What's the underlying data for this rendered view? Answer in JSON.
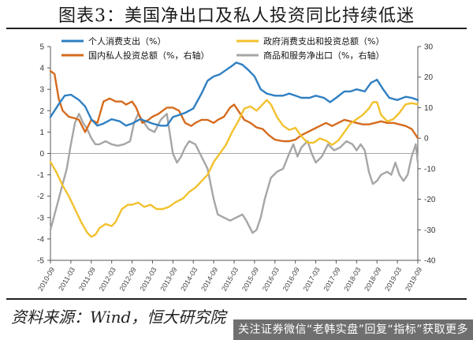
{
  "title": "图表3：美国净出口及私人投资同比持续低迷",
  "source": "资料来源：Wind，恒大研究院",
  "watermark": "关注证券微信“老韩实盘”回复“指标”获取更多",
  "chart_data": {
    "type": "line",
    "left_ylim": [
      -5,
      5
    ],
    "left_ticks": [
      -5,
      -4,
      -3,
      -2,
      -1,
      0,
      1,
      2,
      3,
      4,
      5
    ],
    "right_ylim": [
      -40,
      30
    ],
    "right_ticks": [
      -40,
      -30,
      -20,
      -10,
      0,
      10,
      20,
      30
    ],
    "xlim": [
      2010.75,
      2019.75
    ],
    "x_ticks": [
      {
        "label": "2010-09",
        "x": 2010.75
      },
      {
        "label": "2011-03",
        "x": 2011.25
      },
      {
        "label": "2011-09",
        "x": 2011.75
      },
      {
        "label": "2012-03",
        "x": 2012.25
      },
      {
        "label": "2012-09",
        "x": 2012.75
      },
      {
        "label": "2013-03",
        "x": 2013.25
      },
      {
        "label": "2013-09",
        "x": 2013.75
      },
      {
        "label": "2014-03",
        "x": 2014.25
      },
      {
        "label": "2014-09",
        "x": 2014.75
      },
      {
        "label": "2015-03",
        "x": 2015.25
      },
      {
        "label": "2015-09",
        "x": 2015.75
      },
      {
        "label": "2016-03",
        "x": 2016.25
      },
      {
        "label": "2016-09",
        "x": 2016.75
      },
      {
        "label": "2017-03",
        "x": 2017.25
      },
      {
        "label": "2017-09",
        "x": 2017.75
      },
      {
        "label": "2018-03",
        "x": 2018.25
      },
      {
        "label": "2018-09",
        "x": 2018.75
      },
      {
        "label": "2019-03",
        "x": 2019.25
      },
      {
        "label": "2019-09",
        "x": 2019.75
      }
    ],
    "grid": false,
    "legend_position": "top",
    "series": [
      {
        "name": "个人消费支出（%）",
        "axis": "left",
        "color": "#2e7fc2",
        "points": [
          [
            2010.75,
            1.7
          ],
          [
            2010.95,
            2.3
          ],
          [
            2011.1,
            2.7
          ],
          [
            2011.25,
            2.75
          ],
          [
            2011.45,
            2.5
          ],
          [
            2011.6,
            2.2
          ],
          [
            2011.75,
            1.6
          ],
          [
            2011.9,
            1.3
          ],
          [
            2012.05,
            1.4
          ],
          [
            2012.25,
            1.6
          ],
          [
            2012.45,
            1.5
          ],
          [
            2012.6,
            1.3
          ],
          [
            2012.75,
            1.4
          ],
          [
            2012.95,
            1.6
          ],
          [
            2013.1,
            1.5
          ],
          [
            2013.25,
            1.4
          ],
          [
            2013.45,
            1.3
          ],
          [
            2013.6,
            1.3
          ],
          [
            2013.75,
            1.7
          ],
          [
            2013.9,
            1.8
          ],
          [
            2014.05,
            1.9
          ],
          [
            2014.25,
            2.1
          ],
          [
            2014.45,
            2.8
          ],
          [
            2014.6,
            3.4
          ],
          [
            2014.75,
            3.6
          ],
          [
            2014.9,
            3.7
          ],
          [
            2015.05,
            3.9
          ],
          [
            2015.2,
            4.1
          ],
          [
            2015.3,
            4.25
          ],
          [
            2015.45,
            4.15
          ],
          [
            2015.6,
            3.9
          ],
          [
            2015.75,
            3.6
          ],
          [
            2015.9,
            3.0
          ],
          [
            2016.05,
            2.8
          ],
          [
            2016.25,
            2.7
          ],
          [
            2016.45,
            2.7
          ],
          [
            2016.6,
            2.8
          ],
          [
            2016.75,
            2.7
          ],
          [
            2016.9,
            2.6
          ],
          [
            2017.1,
            2.6
          ],
          [
            2017.25,
            2.7
          ],
          [
            2017.45,
            2.6
          ],
          [
            2017.6,
            2.4
          ],
          [
            2017.75,
            2.6
          ],
          [
            2017.95,
            2.9
          ],
          [
            2018.1,
            2.9
          ],
          [
            2018.25,
            3.0
          ],
          [
            2018.45,
            2.9
          ],
          [
            2018.6,
            3.3
          ],
          [
            2018.75,
            3.45
          ],
          [
            2018.9,
            3.0
          ],
          [
            2019.05,
            2.6
          ],
          [
            2019.25,
            2.5
          ],
          [
            2019.45,
            2.65
          ],
          [
            2019.6,
            2.6
          ],
          [
            2019.75,
            2.5
          ]
        ]
      },
      {
        "name": "政府消费支出和投资总额（%）",
        "axis": "left",
        "color": "#f2c12e",
        "points": [
          [
            2010.75,
            -0.4
          ],
          [
            2010.9,
            -0.9
          ],
          [
            2011.05,
            -1.5
          ],
          [
            2011.2,
            -2.0
          ],
          [
            2011.35,
            -2.6
          ],
          [
            2011.5,
            -3.2
          ],
          [
            2011.65,
            -3.7
          ],
          [
            2011.75,
            -3.9
          ],
          [
            2011.85,
            -3.8
          ],
          [
            2011.95,
            -3.5
          ],
          [
            2012.1,
            -3.3
          ],
          [
            2012.25,
            -3.4
          ],
          [
            2012.35,
            -3.2
          ],
          [
            2012.5,
            -2.6
          ],
          [
            2012.65,
            -2.4
          ],
          [
            2012.75,
            -2.4
          ],
          [
            2012.9,
            -2.3
          ],
          [
            2013.05,
            -2.5
          ],
          [
            2013.2,
            -2.4
          ],
          [
            2013.35,
            -2.6
          ],
          [
            2013.5,
            -2.6
          ],
          [
            2013.65,
            -2.5
          ],
          [
            2013.8,
            -2.3
          ],
          [
            2014.0,
            -2.1
          ],
          [
            2014.15,
            -1.8
          ],
          [
            2014.3,
            -1.6
          ],
          [
            2014.45,
            -1.3
          ],
          [
            2014.6,
            -1.0
          ],
          [
            2014.75,
            -0.4
          ],
          [
            2014.9,
            0.0
          ],
          [
            2015.05,
            0.4
          ],
          [
            2015.2,
            1.0
          ],
          [
            2015.35,
            1.5
          ],
          [
            2015.5,
            2.1
          ],
          [
            2015.65,
            2.2
          ],
          [
            2015.8,
            2.0
          ],
          [
            2015.9,
            2.2
          ],
          [
            2016.05,
            2.5
          ],
          [
            2016.15,
            2.3
          ],
          [
            2016.3,
            1.7
          ],
          [
            2016.45,
            1.3
          ],
          [
            2016.6,
            1.1
          ],
          [
            2016.75,
            1.2
          ],
          [
            2016.9,
            0.8
          ],
          [
            2017.05,
            0.5
          ],
          [
            2017.2,
            0.5
          ],
          [
            2017.35,
            0.7
          ],
          [
            2017.5,
            0.6
          ],
          [
            2017.65,
            0.4
          ],
          [
            2017.8,
            0.6
          ],
          [
            2017.95,
            1.0
          ],
          [
            2018.1,
            1.4
          ],
          [
            2018.25,
            1.6
          ],
          [
            2018.4,
            1.8
          ],
          [
            2018.55,
            2.1
          ],
          [
            2018.65,
            2.4
          ],
          [
            2018.75,
            2.4
          ],
          [
            2018.85,
            1.8
          ],
          [
            2019.0,
            1.5
          ],
          [
            2019.15,
            1.6
          ],
          [
            2019.3,
            1.9
          ],
          [
            2019.45,
            2.3
          ],
          [
            2019.6,
            2.35
          ],
          [
            2019.75,
            2.3
          ]
        ]
      },
      {
        "name": "国内私人投资总额（%，右轴）",
        "axis": "right",
        "color": "#d56b1e",
        "points": [
          [
            2010.75,
            22
          ],
          [
            2010.85,
            21
          ],
          [
            2010.95,
            13
          ],
          [
            2011.05,
            9
          ],
          [
            2011.2,
            7
          ],
          [
            2011.35,
            6.5
          ],
          [
            2011.45,
            6
          ],
          [
            2011.6,
            2
          ],
          [
            2011.75,
            6
          ],
          [
            2011.9,
            5
          ],
          [
            2012.05,
            12
          ],
          [
            2012.2,
            13
          ],
          [
            2012.35,
            12
          ],
          [
            2012.5,
            12
          ],
          [
            2012.6,
            11
          ],
          [
            2012.75,
            12
          ],
          [
            2012.85,
            10
          ],
          [
            2013.0,
            5
          ],
          [
            2013.15,
            6
          ],
          [
            2013.25,
            7
          ],
          [
            2013.4,
            8
          ],
          [
            2013.6,
            10
          ],
          [
            2013.75,
            10
          ],
          [
            2013.9,
            9
          ],
          [
            2014.05,
            5
          ],
          [
            2014.2,
            4
          ],
          [
            2014.3,
            5
          ],
          [
            2014.45,
            6
          ],
          [
            2014.6,
            6
          ],
          [
            2014.75,
            5
          ],
          [
            2014.85,
            6
          ],
          [
            2015.0,
            7
          ],
          [
            2015.15,
            10
          ],
          [
            2015.25,
            11
          ],
          [
            2015.35,
            9
          ],
          [
            2015.5,
            6
          ],
          [
            2015.65,
            5
          ],
          [
            2015.8,
            3.5
          ],
          [
            2015.95,
            3
          ],
          [
            2016.1,
            1
          ],
          [
            2016.25,
            -0.5
          ],
          [
            2016.45,
            -1
          ],
          [
            2016.6,
            -1
          ],
          [
            2016.75,
            -0.5
          ],
          [
            2016.9,
            1
          ],
          [
            2017.05,
            2
          ],
          [
            2017.2,
            3
          ],
          [
            2017.35,
            4
          ],
          [
            2017.5,
            5
          ],
          [
            2017.65,
            4
          ],
          [
            2017.8,
            5
          ],
          [
            2017.95,
            6
          ],
          [
            2018.1,
            5.5
          ],
          [
            2018.25,
            5
          ],
          [
            2018.4,
            4.5
          ],
          [
            2018.55,
            4.5
          ],
          [
            2018.7,
            5
          ],
          [
            2018.85,
            5.5
          ],
          [
            2019.0,
            5
          ],
          [
            2019.15,
            5
          ],
          [
            2019.3,
            4.5
          ],
          [
            2019.45,
            4
          ],
          [
            2019.6,
            3
          ],
          [
            2019.75,
            0
          ]
        ]
      },
      {
        "name": "商品和服务净出口（%，右轴）",
        "axis": "right",
        "color": "#a6a6a6",
        "points": [
          [
            2010.75,
            -30
          ],
          [
            2010.85,
            -25
          ],
          [
            2010.95,
            -20
          ],
          [
            2011.05,
            -15
          ],
          [
            2011.15,
            -10
          ],
          [
            2011.25,
            -2
          ],
          [
            2011.35,
            5
          ],
          [
            2011.45,
            8
          ],
          [
            2011.55,
            5
          ],
          [
            2011.65,
            3
          ],
          [
            2011.75,
            0
          ],
          [
            2011.85,
            -2
          ],
          [
            2011.95,
            -2
          ],
          [
            2012.1,
            -1
          ],
          [
            2012.25,
            -2
          ],
          [
            2012.4,
            -2.5
          ],
          [
            2012.55,
            -2
          ],
          [
            2012.7,
            -1
          ],
          [
            2012.8,
            5
          ],
          [
            2012.9,
            8
          ],
          [
            2013.0,
            6
          ],
          [
            2013.15,
            3
          ],
          [
            2013.3,
            2
          ],
          [
            2013.45,
            6
          ],
          [
            2013.6,
            8
          ],
          [
            2013.75,
            -5
          ],
          [
            2013.85,
            -8
          ],
          [
            2013.95,
            -6
          ],
          [
            2014.05,
            -3
          ],
          [
            2014.15,
            -1
          ],
          [
            2014.3,
            -2
          ],
          [
            2014.45,
            -6
          ],
          [
            2014.6,
            -10
          ],
          [
            2014.75,
            -20
          ],
          [
            2014.85,
            -25
          ],
          [
            2015.0,
            -26
          ],
          [
            2015.15,
            -27
          ],
          [
            2015.3,
            -26
          ],
          [
            2015.45,
            -25
          ],
          [
            2015.55,
            -27
          ],
          [
            2015.7,
            -31
          ],
          [
            2015.8,
            -30
          ],
          [
            2015.9,
            -26
          ],
          [
            2016.0,
            -20
          ],
          [
            2016.15,
            -13
          ],
          [
            2016.3,
            -11
          ],
          [
            2016.45,
            -10
          ],
          [
            2016.6,
            -5
          ],
          [
            2016.7,
            -2
          ],
          [
            2016.8,
            -6
          ],
          [
            2016.9,
            -3
          ],
          [
            2017.05,
            -1
          ],
          [
            2017.15,
            -5
          ],
          [
            2017.25,
            -8
          ],
          [
            2017.4,
            -6
          ],
          [
            2017.55,
            -2
          ],
          [
            2017.7,
            -4
          ],
          [
            2017.85,
            -3
          ],
          [
            2018.0,
            -1
          ],
          [
            2018.15,
            -2
          ],
          [
            2018.25,
            -4
          ],
          [
            2018.35,
            -2
          ],
          [
            2018.45,
            -4
          ],
          [
            2018.55,
            -11
          ],
          [
            2018.65,
            -15
          ],
          [
            2018.75,
            -14
          ],
          [
            2018.85,
            -12
          ],
          [
            2019.0,
            -11
          ],
          [
            2019.1,
            -12
          ],
          [
            2019.2,
            -8
          ],
          [
            2019.3,
            -12
          ],
          [
            2019.4,
            -14
          ],
          [
            2019.5,
            -12
          ],
          [
            2019.6,
            -6
          ],
          [
            2019.7,
            -2
          ],
          [
            2019.75,
            -8
          ]
        ]
      }
    ]
  }
}
